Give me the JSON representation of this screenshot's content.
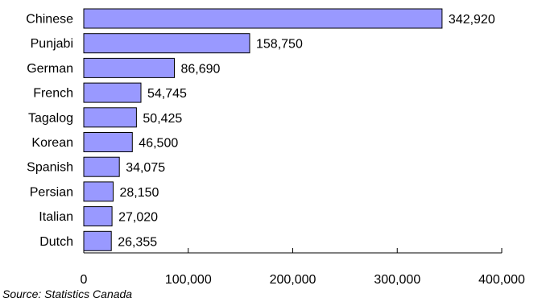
{
  "chart_data": {
    "type": "bar",
    "orientation": "horizontal",
    "categories": [
      "Chinese",
      "Punjabi",
      "German",
      "French",
      "Tagalog",
      "Korean",
      "Spanish",
      "Persian",
      "Italian",
      "Dutch"
    ],
    "values": [
      342920,
      158750,
      86690,
      54745,
      50425,
      46500,
      34075,
      28150,
      27020,
      26355
    ],
    "value_labels": [
      "342,920",
      "158,750",
      "86,690",
      "54,745",
      "50,425",
      "46,500",
      "34,075",
      "28,150",
      "27,020",
      "26,355"
    ],
    "xlim": [
      0,
      400000
    ],
    "x_ticks": [
      0,
      100000,
      200000,
      300000,
      400000
    ],
    "x_tick_labels": [
      "0",
      "100,000",
      "200,000",
      "300,000",
      "400,000"
    ],
    "grid": false,
    "legend": "none",
    "bar_color": "#9999ff",
    "bar_border_color": "#000000"
  },
  "source_note": "Source: Statistics Canada"
}
